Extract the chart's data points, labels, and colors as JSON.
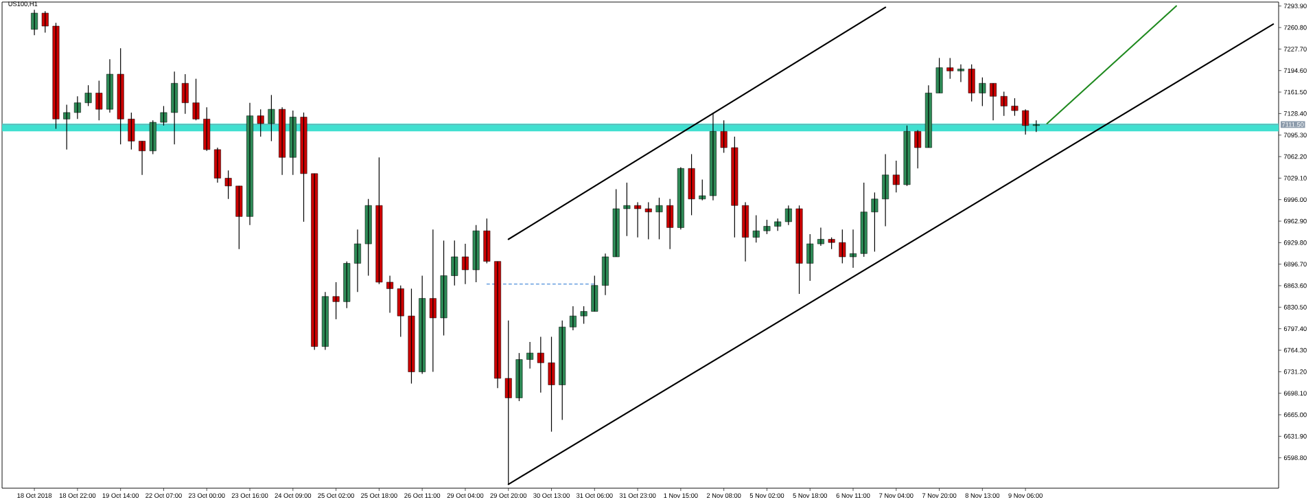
{
  "chart_data": {
    "type": "candlestick",
    "title": "US100,H1",
    "categories": [
      "18 Oct 2018",
      null,
      null,
      null,
      "18 Oct 22:00",
      null,
      null,
      null,
      "19 Oct 14:00",
      null,
      null,
      null,
      "22 Oct 07:00",
      null,
      null,
      null,
      "23 Oct 00:00",
      null,
      null,
      null,
      "23 Oct 16:00",
      null,
      null,
      null,
      "24 Oct 09:00",
      null,
      null,
      null,
      "25 Oct 02:00",
      null,
      null,
      null,
      "25 Oct 18:00",
      null,
      null,
      null,
      "26 Oct 11:00",
      null,
      null,
      null,
      "29 Oct 04:00",
      null,
      null,
      null,
      "29 Oct 20:00",
      null,
      null,
      null,
      "30 Oct 13:00",
      null,
      null,
      null,
      "31 Oct 06:00",
      null,
      null,
      null,
      "31 Oct 23:00",
      null,
      null,
      null,
      "1 Nov 15:00",
      null,
      null,
      null,
      "2 Nov 08:00",
      null,
      null,
      null,
      "5 Nov 02:00",
      null,
      null,
      null,
      "5 Nov 18:00",
      null,
      null,
      null,
      "6 Nov 11:00",
      null,
      null,
      null,
      "7 Nov 04:00",
      null,
      null,
      null,
      "7 Nov 20:00",
      null,
      null,
      null,
      "8 Nov 13:00",
      null,
      null,
      null,
      "9 Nov 06:00",
      null,
      null,
      null,
      null,
      null,
      null,
      null,
      null,
      null,
      null,
      null,
      null,
      null,
      null,
      null,
      null,
      null,
      null,
      null,
      null,
      null,
      null,
      null
    ],
    "ohlc": [
      [
        7258,
        7288,
        7249,
        7283
      ],
      [
        7283,
        7286,
        7253,
        7263
      ],
      [
        7263,
        7268,
        7105,
        7120
      ],
      [
        7120,
        7142,
        7073,
        7130
      ],
      [
        7130,
        7155,
        7120,
        7145
      ],
      [
        7145,
        7172,
        7140,
        7160
      ],
      [
        7160,
        7179,
        7118,
        7135
      ],
      [
        7135,
        7212,
        7130,
        7189
      ],
      [
        7189,
        7229,
        7081,
        7120
      ],
      [
        7120,
        7130,
        7073,
        7086
      ],
      [
        7086,
        7086,
        7034,
        7071
      ],
      [
        7071,
        7118,
        7066,
        7115
      ],
      [
        7115,
        7140,
        7110,
        7130
      ],
      [
        7130,
        7193,
        7081,
        7175
      ],
      [
        7175,
        7189,
        7128,
        7145
      ],
      [
        7145,
        7182,
        7118,
        7120
      ],
      [
        7120,
        7138,
        7071,
        7073
      ],
      [
        7073,
        7076,
        7022,
        7029
      ],
      [
        7029,
        7041,
        6997,
        7017
      ],
      [
        7017,
        7017,
        6920,
        6970
      ],
      [
        6970,
        7145,
        6957,
        7125
      ],
      [
        7125,
        7135,
        7093,
        7113
      ],
      [
        7113,
        7157,
        7086,
        7135
      ],
      [
        7135,
        7138,
        7034,
        7061
      ],
      [
        7061,
        7133,
        7034,
        7123
      ],
      [
        7123,
        7130,
        6962,
        7036
      ],
      [
        7036,
        7036,
        6765,
        6770
      ],
      [
        6770,
        6854,
        6765,
        6847
      ],
      [
        6847,
        6869,
        6812,
        6839
      ],
      [
        6839,
        6901,
        6829,
        6898
      ],
      [
        6898,
        6950,
        6854,
        6928
      ],
      [
        6928,
        6997,
        6879,
        6987
      ],
      [
        6987,
        7061,
        6866,
        6869
      ],
      [
        6869,
        6879,
        6822,
        6859
      ],
      [
        6859,
        6864,
        6785,
        6817
      ],
      [
        6817,
        6859,
        6713,
        6731
      ],
      [
        6731,
        6879,
        6728,
        6844
      ],
      [
        6844,
        6950,
        6731,
        6814
      ],
      [
        6814,
        6933,
        6787,
        6879
      ],
      [
        6879,
        6933,
        6864,
        6908
      ],
      [
        6908,
        6928,
        6866,
        6888
      ],
      [
        6888,
        6957,
        6869,
        6948
      ],
      [
        6948,
        6967,
        6898,
        6901
      ],
      [
        6901,
        6901,
        6706,
        6721
      ],
      [
        6721,
        6810,
        6558,
        6691
      ],
      [
        6691,
        6760,
        6686,
        6750
      ],
      [
        6750,
        6777,
        6736,
        6760
      ],
      [
        6760,
        6785,
        6699,
        6745
      ],
      [
        6745,
        6785,
        6639,
        6711
      ],
      [
        6711,
        6810,
        6657,
        6800
      ],
      [
        6800,
        6832,
        6795,
        6817
      ],
      [
        6817,
        6832,
        6805,
        6824
      ],
      [
        6824,
        6879,
        6824,
        6864
      ],
      [
        6864,
        6913,
        6849,
        6908
      ],
      [
        6908,
        7012,
        6908,
        6982
      ],
      [
        6982,
        7022,
        6940,
        6987
      ],
      [
        6987,
        6992,
        6938,
        6982
      ],
      [
        6982,
        6992,
        6935,
        6977
      ],
      [
        6977,
        6999,
        6935,
        6987
      ],
      [
        6987,
        6997,
        6920,
        6953
      ],
      [
        6953,
        7046,
        6950,
        7044
      ],
      [
        7044,
        7066,
        6972,
        6997
      ],
      [
        6997,
        7027,
        6995,
        7002
      ],
      [
        7002,
        7130,
        6995,
        7101
      ],
      [
        7101,
        7118,
        7068,
        7076
      ],
      [
        7076,
        7093,
        6938,
        6987
      ],
      [
        6987,
        6992,
        6901,
        6938
      ],
      [
        6938,
        6972,
        6930,
        6948
      ],
      [
        6948,
        6965,
        6943,
        6955
      ],
      [
        6955,
        6967,
        6948,
        6962
      ],
      [
        6962,
        6987,
        6957,
        6982
      ],
      [
        6982,
        6987,
        6851,
        6898
      ],
      [
        6898,
        6943,
        6871,
        6928
      ],
      [
        6928,
        6953,
        6925,
        6935
      ],
      [
        6935,
        6938,
        6920,
        6930
      ],
      [
        6930,
        6950,
        6898,
        6908
      ],
      [
        6908,
        6950,
        6891,
        6913
      ],
      [
        6913,
        7022,
        6908,
        6977
      ],
      [
        6977,
        7007,
        6916,
        6997
      ],
      [
        6997,
        7066,
        6955,
        7034
      ],
      [
        7034,
        7056,
        7007,
        7019
      ],
      [
        7019,
        7110,
        7017,
        7101
      ],
      [
        7101,
        7103,
        7044,
        7076
      ],
      [
        7076,
        7172,
        7076,
        7160
      ],
      [
        7160,
        7214,
        7160,
        7199
      ],
      [
        7199,
        7214,
        7182,
        7194
      ],
      [
        7194,
        7204,
        7177,
        7197
      ],
      [
        7197,
        7204,
        7147,
        7160
      ],
      [
        7160,
        7184,
        7140,
        7175
      ],
      [
        7175,
        7175,
        7118,
        7155
      ],
      [
        7155,
        7162,
        7125,
        7140
      ],
      [
        7140,
        7152,
        7125,
        7133
      ],
      [
        7133,
        7135,
        7096,
        7110
      ],
      [
        7110,
        7118,
        7100,
        7111.5
      ],
      null,
      null,
      null,
      null,
      null,
      null,
      null,
      null,
      null,
      null,
      null,
      null,
      null,
      null,
      null,
      null,
      null,
      null,
      null,
      null,
      null,
      null
    ],
    "colors": [
      "#2e8b57",
      "#cc0000",
      "#cc0000",
      "#2e8b57",
      "#2e8b57",
      "#2e8b57",
      "#cc0000",
      "#2e8b57",
      "#cc0000",
      "#cc0000",
      "#cc0000",
      "#2e8b57",
      "#2e8b57",
      "#2e8b57",
      "#cc0000",
      "#cc0000",
      "#cc0000",
      "#cc0000",
      "#cc0000",
      "#cc0000",
      "#2e8b57",
      "#cc0000",
      "#2e8b57",
      "#cc0000",
      "#2e8b57",
      "#cc0000",
      "#cc0000",
      "#2e8b57",
      "#cc0000",
      "#2e8b57",
      "#2e8b57",
      "#2e8b57",
      "#cc0000",
      "#cc0000",
      "#cc0000",
      "#cc0000",
      "#2e8b57",
      "#cc0000",
      "#2e8b57",
      "#2e8b57",
      "#cc0000",
      "#2e8b57",
      "#cc0000",
      "#cc0000",
      "#cc0000",
      "#2e8b57",
      "#2e8b57",
      "#cc0000",
      "#cc0000",
      "#2e8b57",
      "#2e8b57",
      "#2e8b57",
      "#2e8b57",
      "#2e8b57",
      "#2e8b57",
      "#2e8b57",
      "#cc0000",
      "#cc0000",
      "#2e8b57",
      "#cc0000",
      "#2e8b57",
      "#cc0000",
      "#2e8b57",
      "#2e8b57",
      "#cc0000",
      "#cc0000",
      "#cc0000",
      "#2e8b57",
      "#2e8b57",
      "#2e8b57",
      "#2e8b57",
      "#cc0000",
      "#2e8b57",
      "#2e8b57",
      "#cc0000",
      "#cc0000",
      "#2e8b57",
      "#2e8b57",
      "#2e8b57",
      "#2e8b57",
      "#cc0000",
      "#2e8b57",
      "#cc0000",
      "#2e8b57",
      "#2e8b57",
      "#cc0000",
      "#2e8b57",
      "#cc0000",
      "#2e8b57",
      "#cc0000",
      "#cc0000",
      "#cc0000",
      "#cc0000",
      "#2e8b57",
      null,
      null,
      null,
      null,
      null,
      null,
      null,
      null,
      null,
      null,
      null,
      null,
      null,
      null,
      null,
      null,
      null,
      null,
      null,
      null,
      null,
      null
    ],
    "series": [
      {
        "type": "line",
        "color": "#000000",
        "line_style": "solid",
        "values": [
          null,
          null,
          null,
          null,
          null,
          null,
          null,
          null,
          null,
          null,
          null,
          null,
          null,
          null,
          null,
          null,
          null,
          null,
          null,
          null,
          null,
          null,
          null,
          null,
          null,
          null,
          null,
          null,
          null,
          null,
          null,
          null,
          null,
          null,
          null,
          null,
          null,
          null,
          null,
          null,
          null,
          null,
          null,
          null,
          6558,
          null,
          null,
          null,
          null,
          null,
          null,
          null,
          null,
          null,
          null,
          null,
          null,
          null,
          null,
          null,
          null,
          null,
          null,
          null,
          null,
          null,
          null,
          null,
          null,
          null,
          null,
          null,
          null,
          null,
          null,
          null,
          null,
          null,
          null,
          null,
          null,
          null,
          null,
          null,
          null,
          null,
          null,
          null,
          null,
          null,
          null,
          null,
          null,
          null,
          null,
          null,
          null,
          null,
          null,
          null,
          null,
          null,
          null,
          null,
          null,
          null,
          null,
          null,
          null,
          null,
          null,
          null,
          null,
          null,
          null,
          7266
        ]
      },
      {
        "type": "line",
        "color": "#000000",
        "line_style": "solid",
        "values": [
          null,
          null,
          null,
          null,
          null,
          null,
          null,
          null,
          null,
          null,
          null,
          null,
          null,
          null,
          null,
          null,
          null,
          null,
          null,
          null,
          null,
          null,
          null,
          null,
          null,
          null,
          null,
          null,
          null,
          null,
          null,
          null,
          null,
          null,
          null,
          null,
          null,
          null,
          null,
          null,
          null,
          null,
          null,
          null,
          6935,
          null,
          null,
          null,
          null,
          null,
          null,
          null,
          null,
          null,
          null,
          null,
          null,
          null,
          null,
          null,
          null,
          null,
          null,
          null,
          null,
          null,
          null,
          null,
          null,
          null,
          null,
          null,
          null,
          null,
          null,
          null,
          null,
          null,
          null,
          7292,
          null,
          null,
          null,
          null,
          null,
          null,
          null,
          null,
          null,
          null,
          null,
          null,
          null,
          null,
          null,
          null,
          null,
          null,
          null,
          null,
          null,
          null,
          null,
          null,
          null,
          null,
          null,
          null,
          null,
          null,
          null,
          null,
          null,
          null,
          null,
          null
        ]
      },
      {
        "type": "line",
        "color": "#1f8a1f",
        "line_style": "solid",
        "values": [
          null,
          null,
          null,
          null,
          null,
          null,
          null,
          null,
          null,
          null,
          null,
          null,
          null,
          null,
          null,
          null,
          null,
          null,
          null,
          null,
          null,
          null,
          null,
          null,
          null,
          null,
          null,
          null,
          null,
          null,
          null,
          null,
          null,
          null,
          null,
          null,
          null,
          null,
          null,
          null,
          null,
          null,
          null,
          null,
          null,
          null,
          null,
          null,
          null,
          null,
          null,
          null,
          null,
          null,
          null,
          null,
          null,
          null,
          null,
          null,
          null,
          null,
          null,
          null,
          null,
          null,
          null,
          null,
          null,
          null,
          null,
          null,
          null,
          null,
          null,
          null,
          null,
          null,
          null,
          null,
          null,
          null,
          null,
          null,
          null,
          null,
          null,
          null,
          null,
          null,
          null,
          null,
          null,
          null,
          7113,
          null,
          null,
          null,
          null,
          null,
          null,
          null,
          null,
          null,
          null,
          null,
          7294,
          null,
          null,
          null,
          null,
          null,
          null,
          null,
          null,
          null
        ]
      },
      {
        "type": "line",
        "color": "#1e6fd0",
        "line_style": "dashed",
        "values": [
          null,
          null,
          null,
          null,
          null,
          null,
          null,
          null,
          null,
          null,
          null,
          null,
          null,
          null,
          null,
          null,
          null,
          null,
          null,
          null,
          null,
          null,
          null,
          null,
          null,
          null,
          null,
          null,
          null,
          null,
          null,
          null,
          null,
          null,
          null,
          null,
          null,
          null,
          null,
          null,
          null,
          null,
          6866,
          null,
          null,
          null,
          null,
          null,
          null,
          null,
          null,
          null,
          6866,
          null,
          null,
          null,
          null,
          null,
          null,
          null,
          null,
          null,
          null,
          null,
          null,
          null,
          null,
          null,
          null,
          null,
          null,
          null,
          null,
          null,
          null,
          null,
          null,
          null,
          null,
          null,
          null,
          null,
          null,
          null,
          null,
          null,
          null,
          null,
          null,
          null,
          null,
          null,
          null,
          null,
          null,
          null,
          null,
          null,
          null,
          null,
          null,
          null,
          null,
          null,
          null,
          null,
          null,
          null,
          null,
          null,
          null,
          null,
          null,
          null,
          null,
          null
        ]
      }
    ],
    "ylim": [
      6552,
      7300
    ],
    "yticks": [
      {
        "value": 6598.8,
        "label": "6598.80"
      },
      {
        "value": 6631.9,
        "label": "6631.90"
      },
      {
        "value": 6665.0,
        "label": "6665.00"
      },
      {
        "value": 6698.1,
        "label": "6698.10"
      },
      {
        "value": 6731.2,
        "label": "6731.20"
      },
      {
        "value": 6764.3,
        "label": "6764.30"
      },
      {
        "value": 6797.4,
        "label": "6797.40"
      },
      {
        "value": 6830.5,
        "label": "6830.50"
      },
      {
        "value": 6863.6,
        "label": "6863.60"
      },
      {
        "value": 6896.7,
        "label": "6896.70"
      },
      {
        "value": 6929.8,
        "label": "6929.80"
      },
      {
        "value": 6962.9,
        "label": "6962.90"
      },
      {
        "value": 6996.0,
        "label": "6996.00"
      },
      {
        "value": 7029.1,
        "label": "7029.10"
      },
      {
        "value": 7062.2,
        "label": "7062.20"
      },
      {
        "value": 7095.3,
        "label": "7095.30"
      },
      {
        "value": 7128.4,
        "label": "7128.40"
      },
      {
        "value": 7161.5,
        "label": "7161.50"
      },
      {
        "value": 7194.6,
        "label": "7194.60"
      },
      {
        "value": 7227.7,
        "label": "7227.70"
      },
      {
        "value": 7260.8,
        "label": "7260.80"
      },
      {
        "value": 7293.9,
        "label": "7293.90"
      }
    ],
    "ref_lines": [
      {
        "axis": "y",
        "value": 7111.5,
        "label": "7111.50",
        "color": "#8c9bab"
      }
    ],
    "bands": [
      {
        "axis": "y",
        "from": 7101,
        "to": 7113,
        "color": "#40e0d0"
      }
    ],
    "grid": false,
    "legend": false
  }
}
